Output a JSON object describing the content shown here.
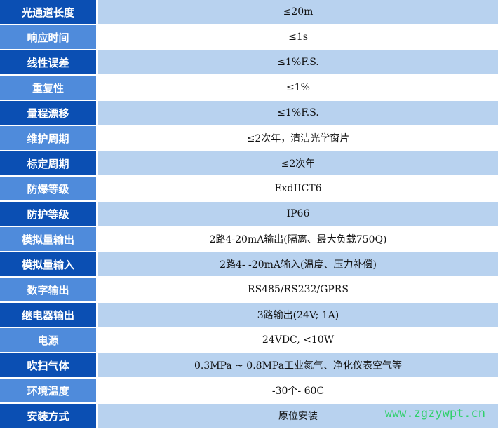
{
  "colors": {
    "label_dark": "#0b4fb3",
    "label_light": "#4f8bdb",
    "value_shaded": "#b8d2ef",
    "value_plain": "#ffffff",
    "watermark": "#2fd06a"
  },
  "rows": [
    {
      "label": "光通道长度",
      "value": "≤20m"
    },
    {
      "label": "响应时间",
      "value": "≤1s"
    },
    {
      "label": "线性误差",
      "value": "≤1%F.S."
    },
    {
      "label": "重复性",
      "value": "≤1%"
    },
    {
      "label": "量程漂移",
      "value": "≤1%F.S."
    },
    {
      "label": "维护周期",
      "value": "≤2次年，清洁光学窗片"
    },
    {
      "label": "标定周期",
      "value": "≤2次年"
    },
    {
      "label": "防爆等级",
      "value": "ExdIICT6"
    },
    {
      "label": "防护等级",
      "value": "IP66"
    },
    {
      "label": "模拟量输出",
      "value": "2路4-20mA输出(隔离、最大负载750Q)"
    },
    {
      "label": "模拟量输入",
      "value": "2路4- -20mA输入(温度、压力补偿)"
    },
    {
      "label": "数字输出",
      "value": "RS485/RS232/GPRS"
    },
    {
      "label": "继电器输出",
      "value": "3路输出(24V; 1A)"
    },
    {
      "label": "电源",
      "value": "24VDC, <10W"
    },
    {
      "label": "吹扫气体",
      "value": "0.3MPa ~ 0.8MPa工业氮气、净化仪表空气等"
    },
    {
      "label": "环境温度",
      "value": "-30个- 60C"
    },
    {
      "label": "安装方式",
      "value": "原位安装"
    }
  ],
  "watermark": "www.zgzywpt.cn"
}
